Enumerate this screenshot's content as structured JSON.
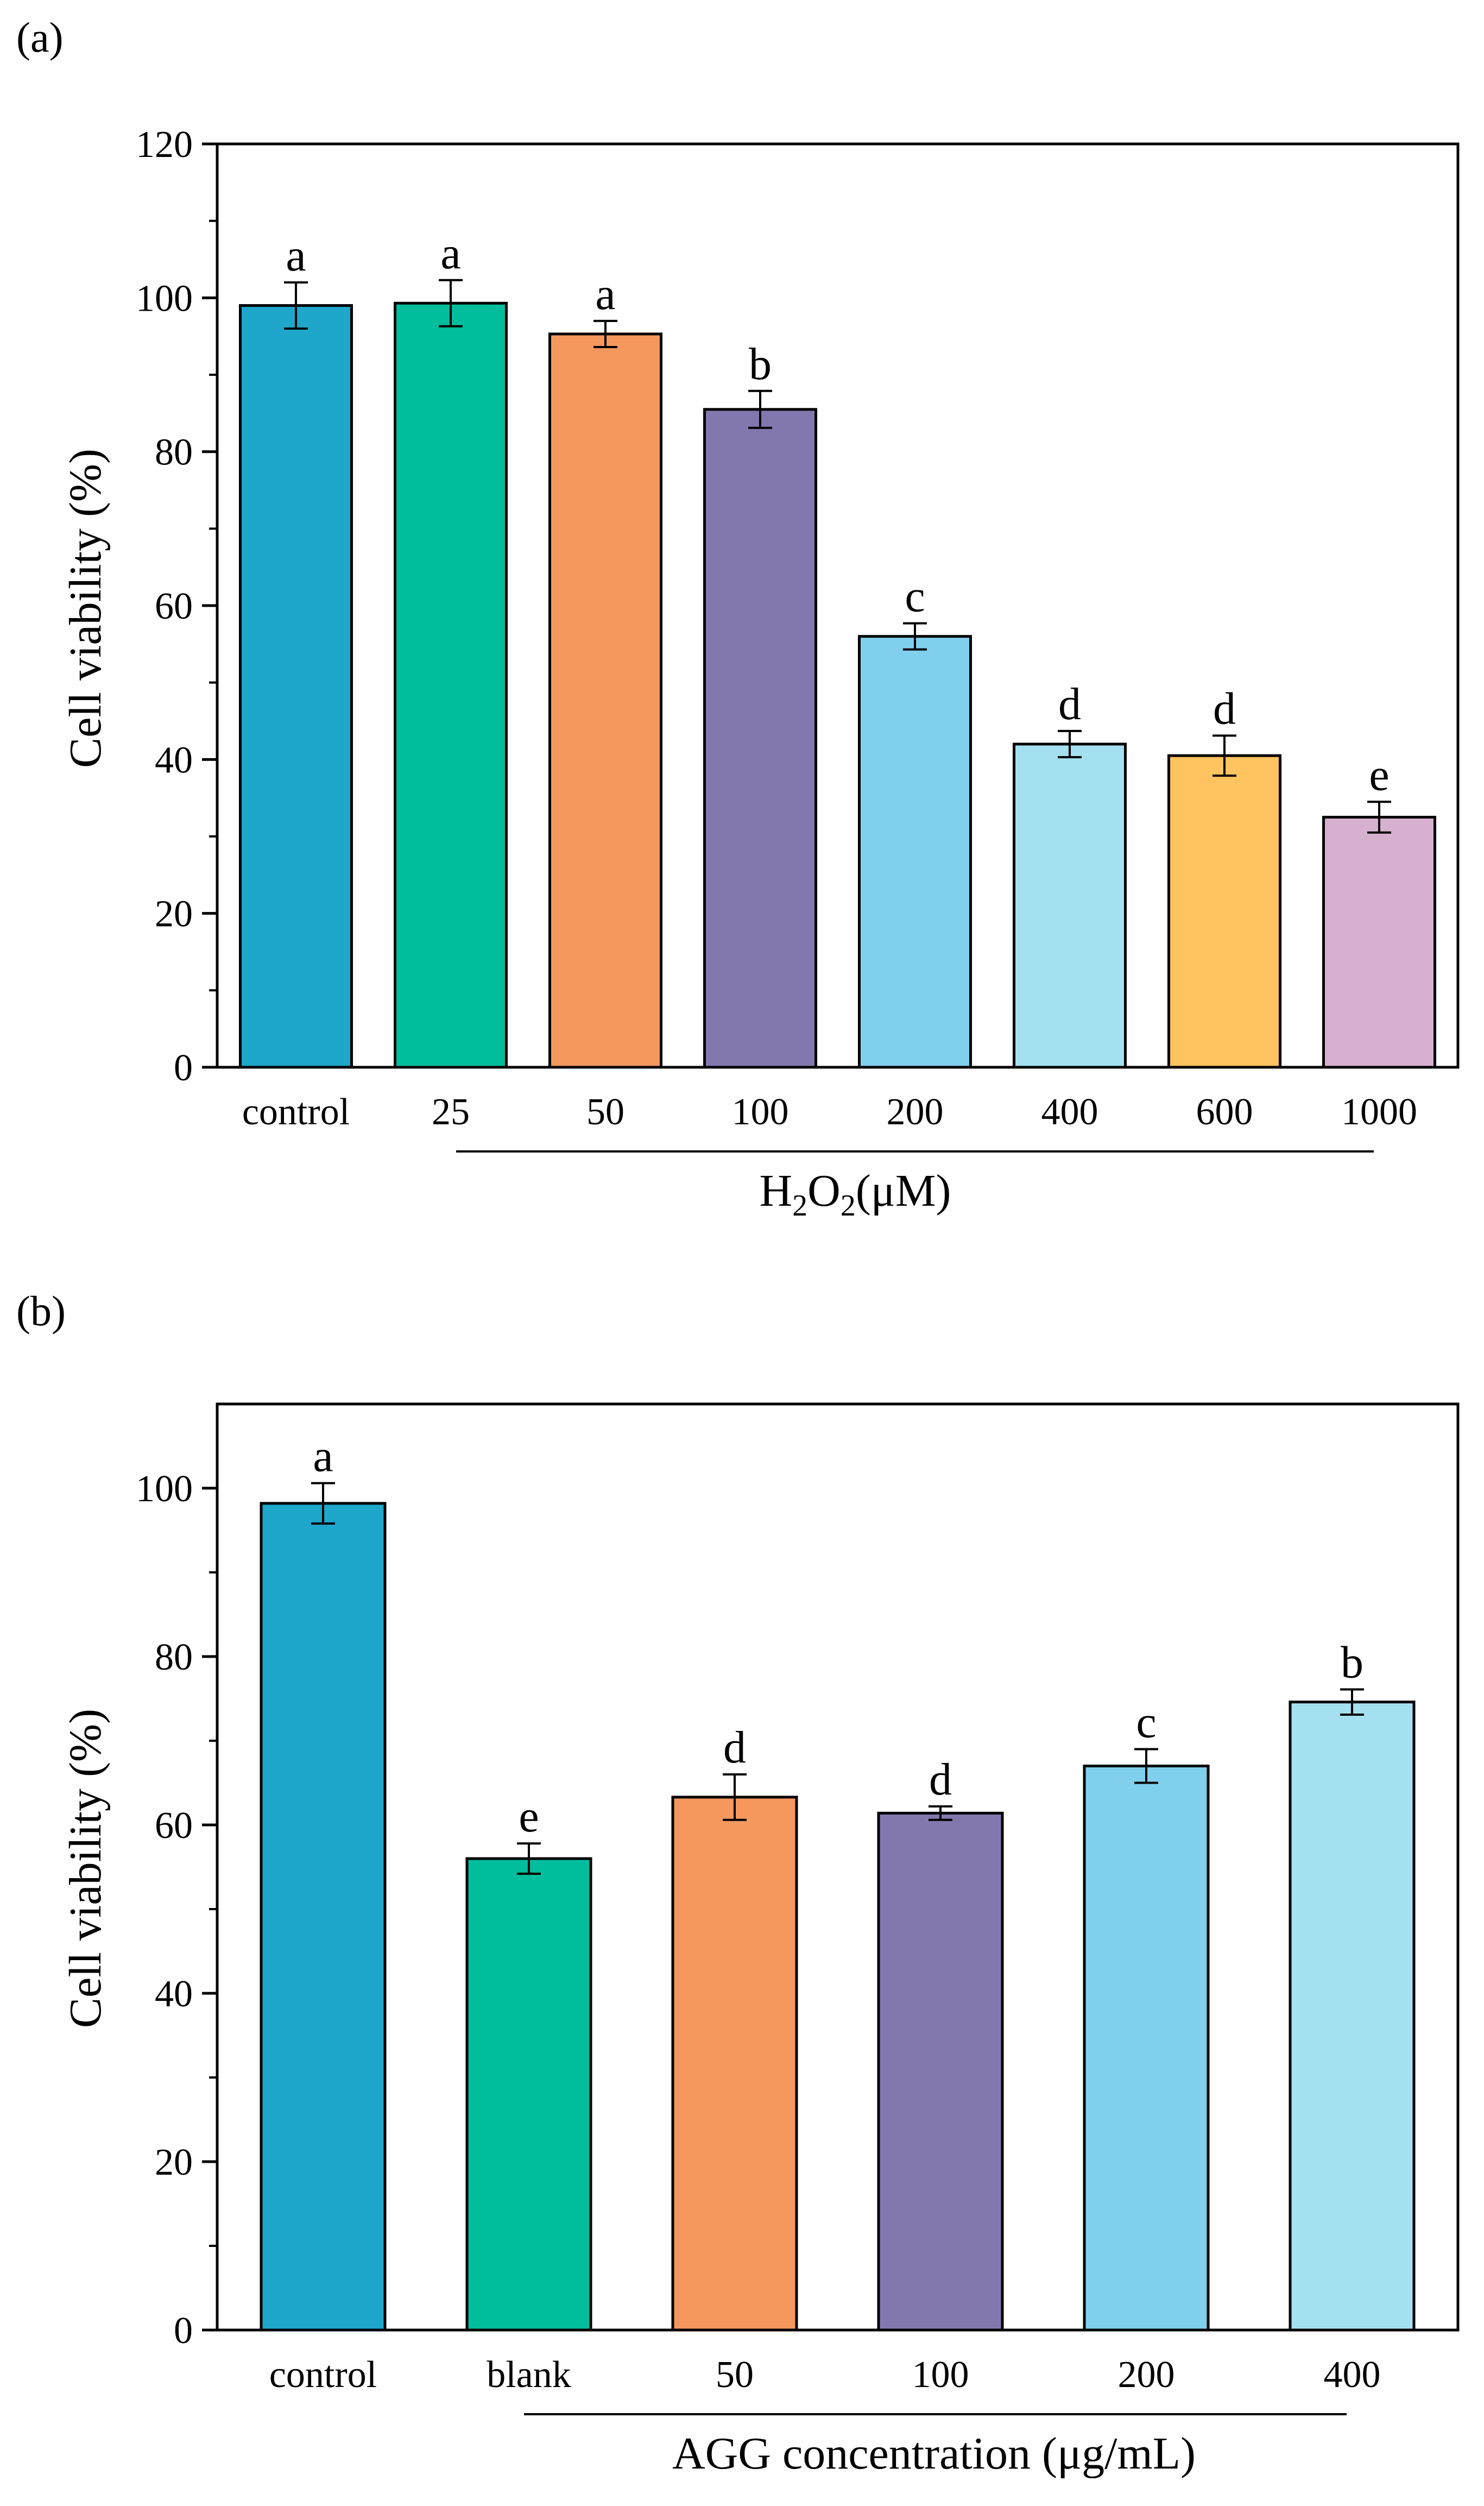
{
  "panels": [
    {
      "panel_label": "(a)",
      "ylabel": "Cell viability (%)",
      "xlabel": {
        "main": "H",
        "sub1": "2",
        "mid": "O",
        "sub2": "2",
        "tail": "(μM)"
      }
    },
    {
      "panel_label": "(b)",
      "ylabel": "Cell viability (%)",
      "xlabel": {
        "main": "AGG concentration (μg/mL)"
      }
    }
  ],
  "colors": {
    "blue": "#1EA6CB",
    "teal": "#00BE9C",
    "orange": "#F5985E",
    "purple": "#8378AE",
    "skyblue": "#80CFED",
    "lightcyan": "#A5E0F0",
    "yellow": "#FFC35F",
    "pink": "#D5B1CF"
  },
  "chart_data": [
    {
      "type": "bar",
      "panel": "(a)",
      "categories": [
        "control",
        "25",
        "50",
        "100",
        "200",
        "400",
        "600",
        "1000"
      ],
      "values": [
        99,
        99.3,
        95.3,
        85.5,
        56,
        42,
        40.5,
        32.5
      ],
      "errors": [
        3,
        3,
        1.7,
        2.4,
        1.7,
        1.7,
        2.6,
        2
      ],
      "significance": [
        "a",
        "a",
        "a",
        "b",
        "c",
        "d",
        "d",
        "e"
      ],
      "bar_colors": [
        "#1EA6CB",
        "#00BE9C",
        "#F5985E",
        "#8378AE",
        "#80CFED",
        "#A5E0F0",
        "#FFC35F",
        "#D5B1CF"
      ],
      "ylabel": "Cell viability (%)",
      "xlabel": "H2O2(μM)",
      "ylim": [
        0,
        120
      ],
      "yticks": [
        0,
        20,
        40,
        60,
        80,
        100,
        120
      ],
      "grid": false
    },
    {
      "type": "bar",
      "panel": "(b)",
      "categories": [
        "control",
        "blank",
        "50",
        "100",
        "200",
        "400"
      ],
      "values": [
        98.2,
        56,
        63.3,
        61.4,
        67,
        74.6
      ],
      "errors": [
        2.4,
        1.8,
        2.7,
        0.8,
        2,
        1.5
      ],
      "significance": [
        "a",
        "e",
        "d",
        "d",
        "c",
        "b"
      ],
      "bar_colors": [
        "#1EA6CB",
        "#00BE9C",
        "#F5985E",
        "#8378AE",
        "#80CFED",
        "#A5E0F0"
      ],
      "ylabel": "Cell viability (%)",
      "xlabel": "AGG concentration (μg/mL)",
      "ylim": [
        0,
        110
      ],
      "yticks": [
        0,
        20,
        40,
        60,
        80,
        100
      ],
      "grid": false
    }
  ]
}
